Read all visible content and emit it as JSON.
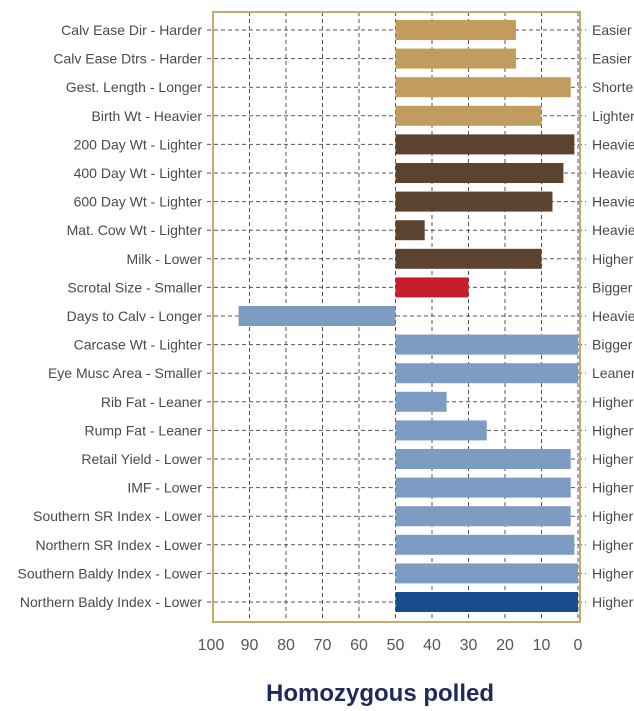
{
  "chart_data": {
    "type": "bar",
    "orientation": "horizontal",
    "title": "Homozygous polled",
    "x_axis": {
      "ticks": [
        100,
        90,
        80,
        70,
        60,
        50,
        40,
        30,
        20,
        10,
        0
      ],
      "range": [
        100,
        0
      ],
      "reversed": true
    },
    "grid": true,
    "baseline": 50,
    "categories": [
      {
        "left": "Calv Ease Dir - Harder",
        "right": "Easier",
        "value": 17,
        "color": "#c29b5e"
      },
      {
        "left": "Calv Ease Dtrs - Harder",
        "right": "Easier",
        "value": 17,
        "color": "#c29b5e"
      },
      {
        "left": "Gest. Length - Longer",
        "right": "Shorter",
        "value": 2,
        "color": "#c29b5e"
      },
      {
        "left": "Birth Wt - Heavier",
        "right": "Lighter",
        "value": 10,
        "color": "#c29b5e"
      },
      {
        "left": "200 Day Wt - Lighter",
        "right": "Heavier",
        "value": 1,
        "color": "#5b4330"
      },
      {
        "left": "400 Day Wt - Lighter",
        "right": "Heavier",
        "value": 4,
        "color": "#5b4330"
      },
      {
        "left": "600 Day Wt - Lighter",
        "right": "Heavier",
        "value": 7,
        "color": "#5b4330"
      },
      {
        "left": "Mat. Cow Wt - Lighter",
        "right": "Heavier",
        "value": 42,
        "color": "#5b4330"
      },
      {
        "left": "Milk - Lower",
        "right": "Higher",
        "value": 10,
        "color": "#5b4330"
      },
      {
        "left": "Scrotal Size - Smaller",
        "right": "Bigger",
        "value": 30,
        "color": "#c41e2c"
      },
      {
        "left": "Days to Calv - Longer",
        "right": "Heavier",
        "value": 93,
        "color": "#7c9cc4"
      },
      {
        "left": "Carcase Wt - Lighter",
        "right": "Bigger",
        "value": 0,
        "color": "#7c9cc4"
      },
      {
        "left": "Eye Musc Area - Smaller",
        "right": "Leaner",
        "value": 0,
        "color": "#7c9cc4"
      },
      {
        "left": "Rib Fat - Leaner",
        "right": "Higher",
        "value": 36,
        "color": "#7c9cc4"
      },
      {
        "left": "Rump Fat - Leaner",
        "right": "Higher",
        "value": 25,
        "color": "#7c9cc4"
      },
      {
        "left": "Retail Yield - Lower",
        "right": "Higher",
        "value": 2,
        "color": "#7c9cc4"
      },
      {
        "left": "IMF - Lower",
        "right": "Higher",
        "value": 2,
        "color": "#7c9cc4"
      },
      {
        "left": "Southern SR Index - Lower",
        "right": "Higher",
        "value": 2,
        "color": "#7c9cc4"
      },
      {
        "left": "Northern SR Index - Lower",
        "right": "Higher",
        "value": 1,
        "color": "#7c9cc4"
      },
      {
        "left": "Southern Baldy Index - Lower",
        "right": "Higher",
        "value": 0,
        "color": "#7c9cc4"
      },
      {
        "left": "Northern Baldy Index - Lower",
        "right": "Higher",
        "value": 0,
        "color": "#154d8e"
      }
    ],
    "frame_color": "#c4aa70"
  }
}
